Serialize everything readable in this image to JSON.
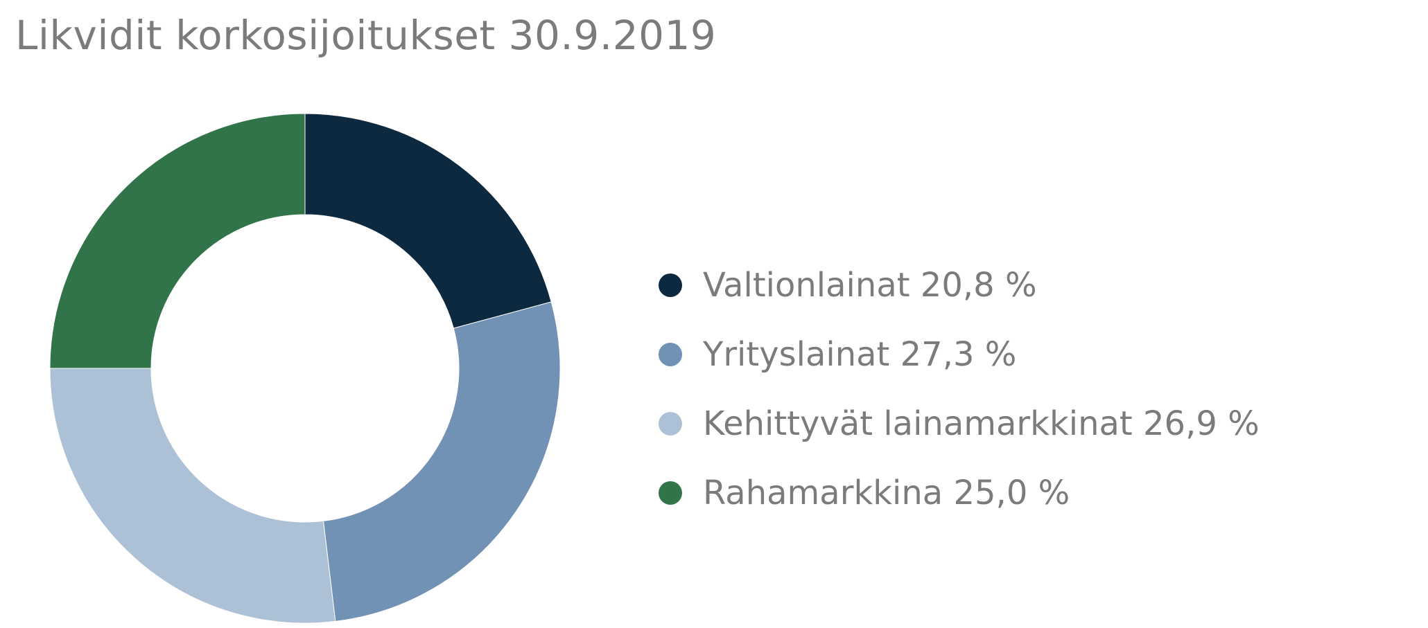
{
  "chart_data": {
    "type": "pie",
    "title": "Likvidit korkosijoitukset 30.9.2019",
    "series": [
      {
        "name": "Valtionlainat",
        "value": 20.8,
        "label": "Valtionlainat 20,8 %",
        "color": "#0d2940"
      },
      {
        "name": "Yrityslainat",
        "value": 27.3,
        "label": "Yrityslainat 27,3 %",
        "color": "#7191b5"
      },
      {
        "name": "Kehittyvät lainamarkkinat",
        "value": 26.9,
        "label": "Kehittyvät lainamarkkinat 26,9 %",
        "color": "#adc1d6"
      },
      {
        "name": "Rahamarkkina",
        "value": 25.0,
        "label": "Rahamarkkina 25,0 %",
        "color": "#317449"
      }
    ],
    "legend_position": "right"
  }
}
